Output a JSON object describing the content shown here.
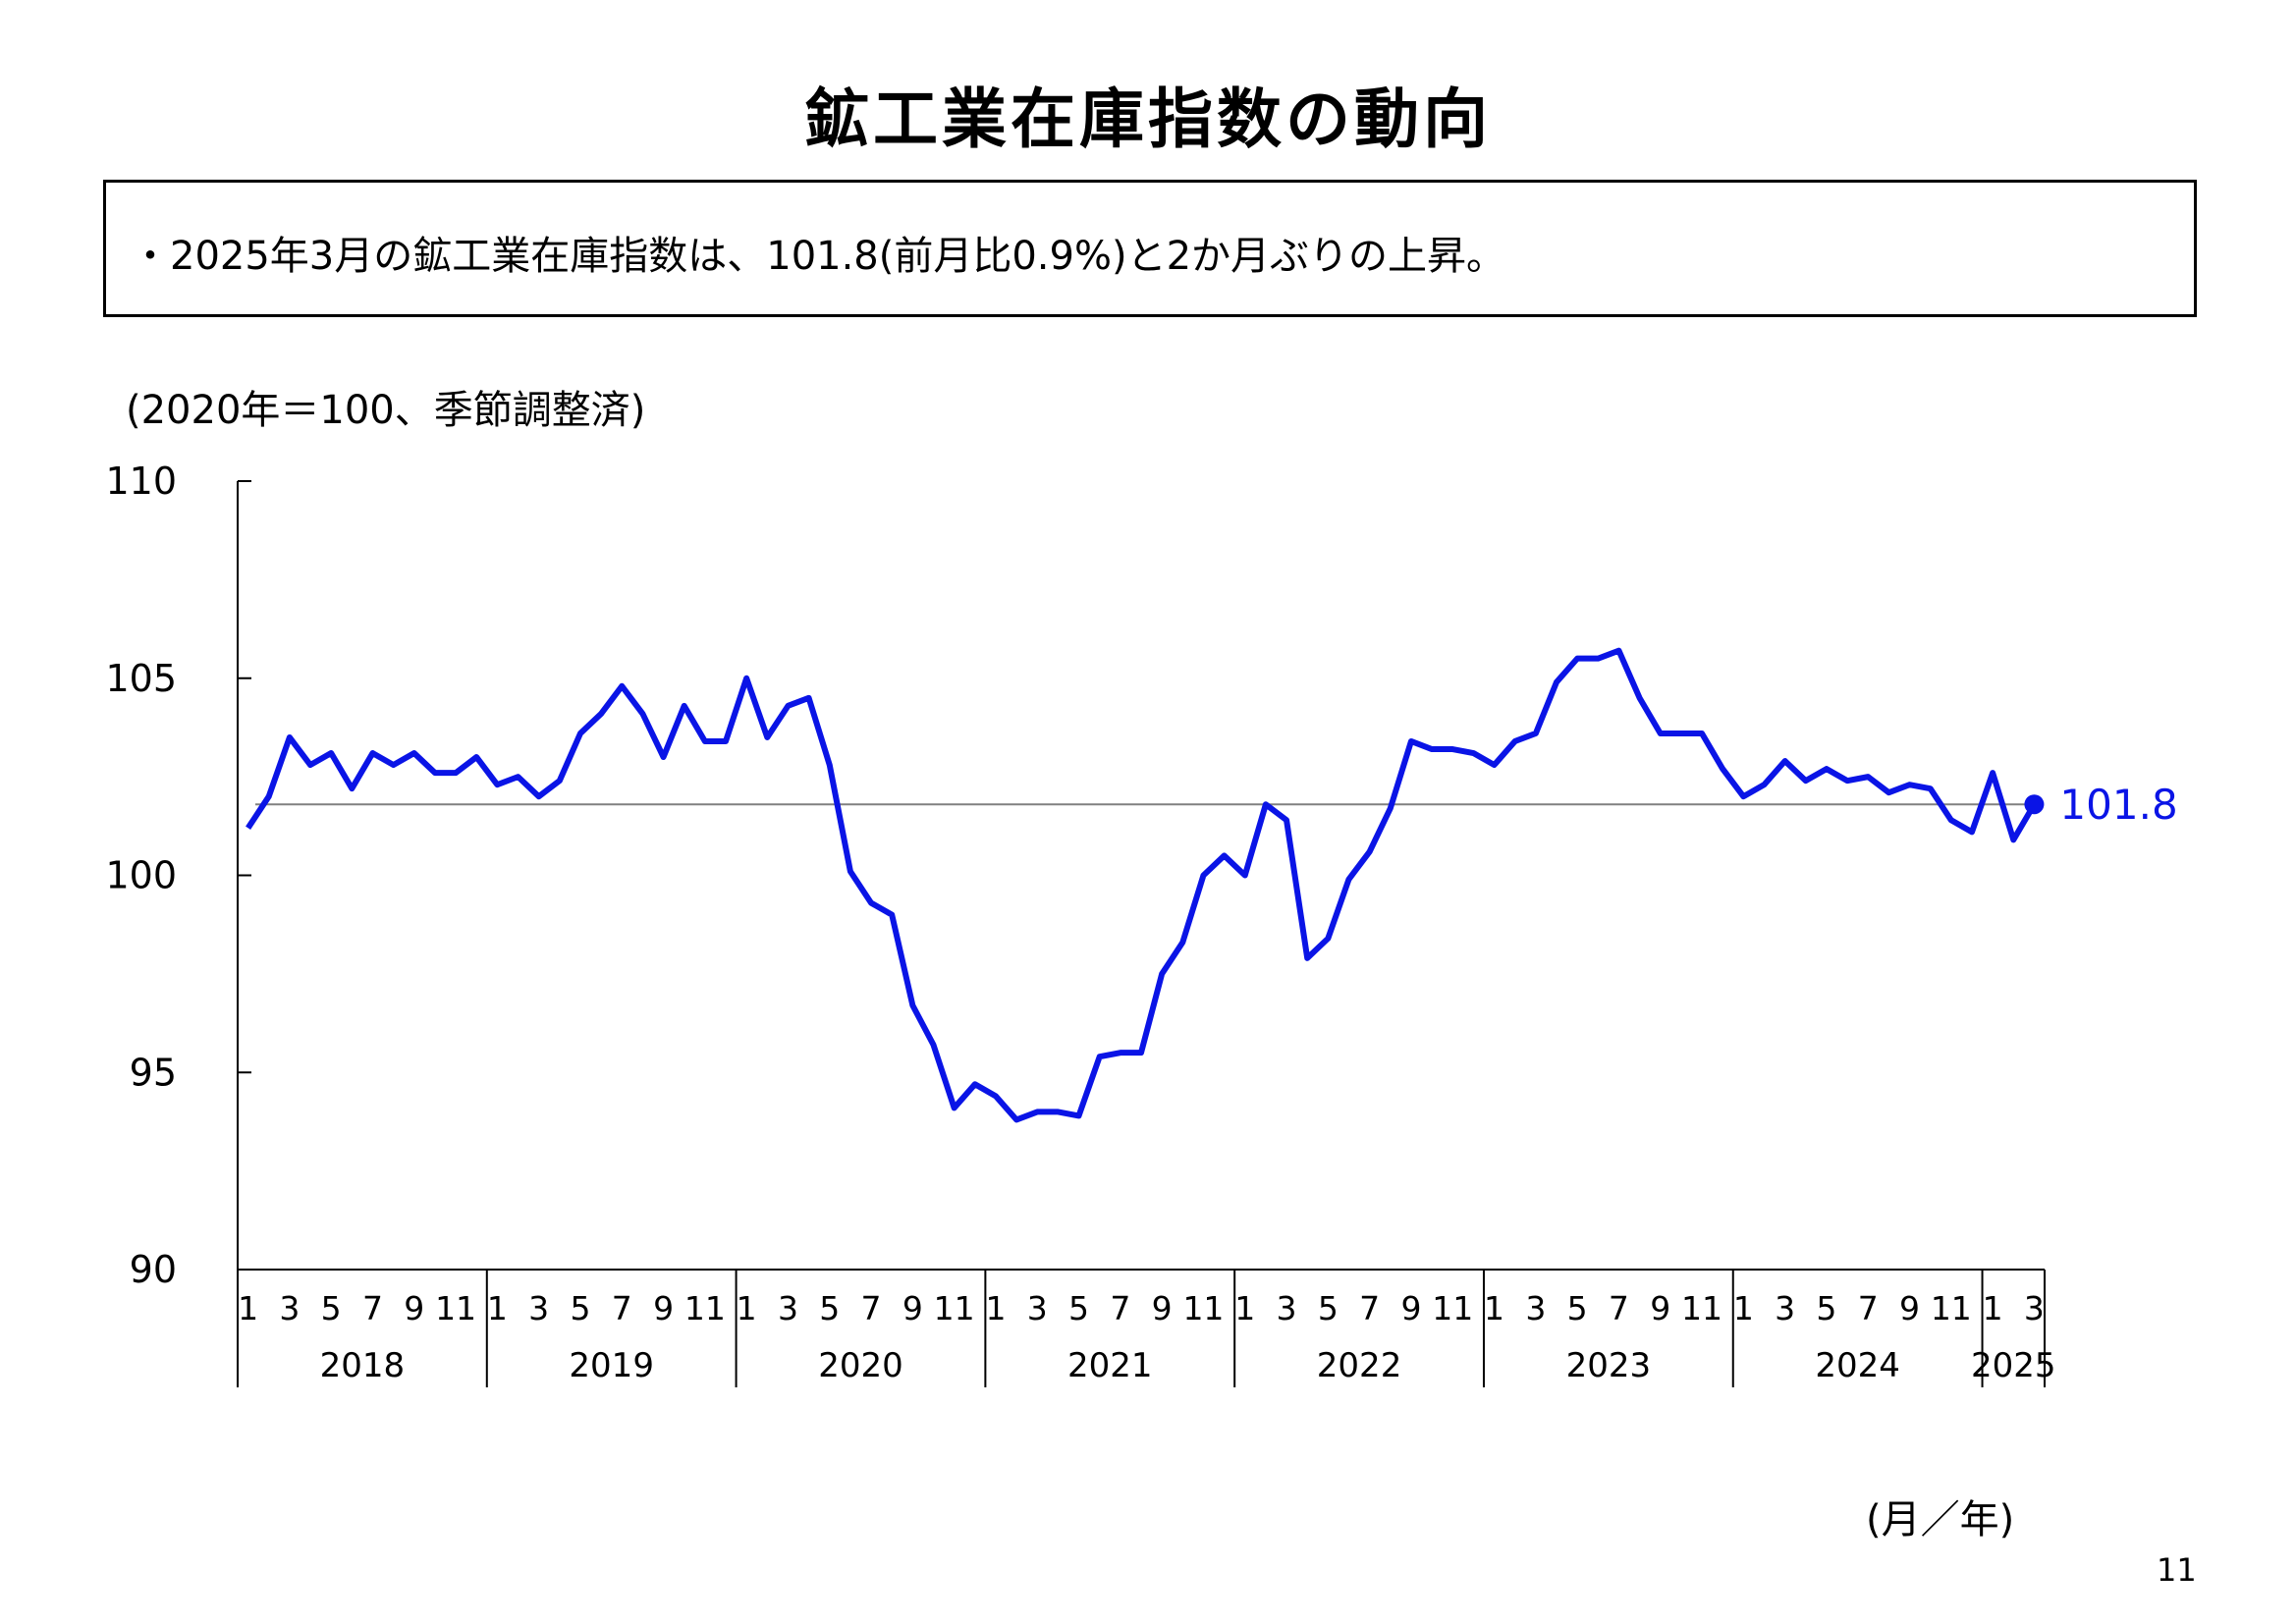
{
  "page": {
    "title": "鉱工業在庫指数の動向",
    "summary": "・2025年3月の鉱工業在庫指数は、101.8(前月比0.9%)と2か月ぶりの上昇。",
    "unit_note": "(2020年＝100、季節調整済)",
    "axis_unit": "(月／年)",
    "page_number": "11"
  },
  "chart_data": {
    "type": "line",
    "title": "",
    "xlabel": "(月／年)",
    "ylabel": "(2020年＝100、季節調整済)",
    "ylim": [
      90,
      110
    ],
    "yticks": [
      "90",
      "95",
      "100",
      "105",
      "110"
    ],
    "x_month_labels": [
      "1",
      "3",
      "5",
      "7",
      "9",
      "11"
    ],
    "x_month_labels_last_year": [
      "1",
      "3"
    ],
    "years": [
      "2018",
      "2019",
      "2020",
      "2021",
      "2022",
      "2023",
      "2024",
      "2025"
    ],
    "grid": false,
    "reference_line_value": 101.8,
    "line_color": "#0a14e6",
    "reference_line_color": "#808080",
    "last_point_label": "101.8",
    "series": [
      {
        "name": "",
        "x": [
          "2018-01",
          "2018-02",
          "2018-03",
          "2018-04",
          "2018-05",
          "2018-06",
          "2018-07",
          "2018-08",
          "2018-09",
          "2018-10",
          "2018-11",
          "2018-12",
          "2019-01",
          "2019-02",
          "2019-03",
          "2019-04",
          "2019-05",
          "2019-06",
          "2019-07",
          "2019-08",
          "2019-09",
          "2019-10",
          "2019-11",
          "2019-12",
          "2020-01",
          "2020-02",
          "2020-03",
          "2020-04",
          "2020-05",
          "2020-06",
          "2020-07",
          "2020-08",
          "2020-09",
          "2020-10",
          "2020-11",
          "2020-12",
          "2021-01",
          "2021-02",
          "2021-03",
          "2021-04",
          "2021-05",
          "2021-06",
          "2021-07",
          "2021-08",
          "2021-09",
          "2021-10",
          "2021-11",
          "2021-12",
          "2022-01",
          "2022-02",
          "2022-03",
          "2022-04",
          "2022-05",
          "2022-06",
          "2022-07",
          "2022-08",
          "2022-09",
          "2022-10",
          "2022-11",
          "2022-12",
          "2023-01",
          "2023-02",
          "2023-03",
          "2023-04",
          "2023-05",
          "2023-06",
          "2023-07",
          "2023-08",
          "2023-09",
          "2023-10",
          "2023-11",
          "2023-12",
          "2024-01",
          "2024-02",
          "2024-03",
          "2024-04",
          "2024-05",
          "2024-06",
          "2024-07",
          "2024-08",
          "2024-09",
          "2024-10",
          "2024-11",
          "2024-12",
          "2025-01",
          "2025-02",
          "2025-03"
        ],
        "values": [
          101.2,
          102.0,
          103.5,
          102.8,
          103.1,
          102.2,
          103.1,
          102.8,
          103.1,
          102.6,
          102.6,
          103.0,
          102.3,
          102.5,
          102.0,
          102.4,
          103.6,
          104.1,
          104.8,
          104.1,
          103.0,
          104.3,
          103.4,
          103.4,
          105.0,
          103.5,
          104.3,
          104.5,
          102.8,
          100.1,
          99.3,
          99.0,
          96.7,
          95.7,
          94.1,
          94.7,
          94.4,
          93.8,
          94.0,
          94.0,
          93.9,
          95.4,
          95.5,
          95.5,
          97.5,
          98.3,
          100.0,
          100.5,
          100.0,
          101.8,
          101.4,
          97.9,
          98.4,
          99.9,
          100.6,
          101.7,
          103.4,
          103.2,
          103.2,
          103.1,
          102.8,
          103.4,
          103.6,
          104.9,
          105.5,
          105.5,
          105.7,
          104.5,
          103.6,
          103.6,
          103.6,
          102.7,
          102.0,
          102.3,
          102.9,
          102.4,
          102.7,
          102.4,
          102.5,
          102.1,
          102.3,
          102.2,
          101.4,
          101.1,
          102.6,
          100.9,
          101.8
        ]
      }
    ]
  }
}
